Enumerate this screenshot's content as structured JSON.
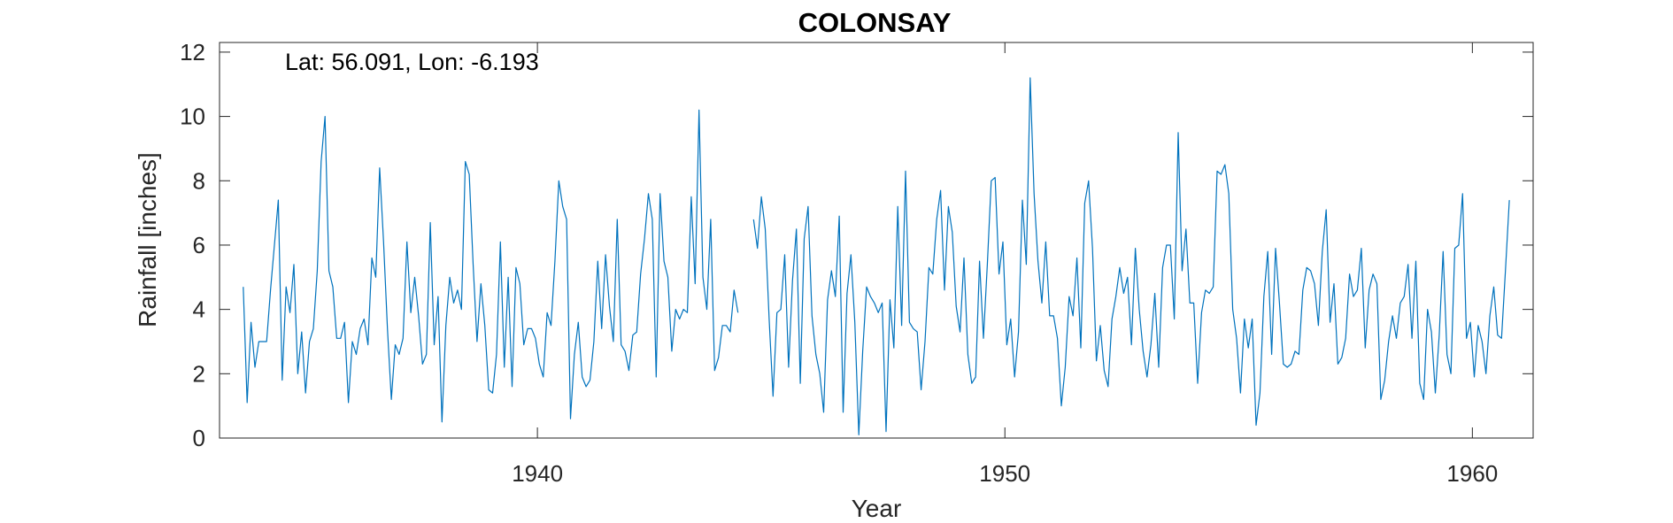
{
  "chart_data": {
    "type": "line",
    "title": "COLONSAY",
    "xlabel": "Year",
    "ylabel": "Rainfall [inches]",
    "annotation": "Lat: 56.091, Lon: -6.193",
    "xlim": [
      1933.2,
      1961.3
    ],
    "ylim": [
      0,
      12.3
    ],
    "xticks": [
      1940,
      1950,
      1960
    ],
    "yticks": [
      0,
      2,
      4,
      6,
      8,
      10,
      12
    ],
    "grid": false,
    "box": true,
    "colors": {
      "line": "#0072BD",
      "axis": "#262626"
    },
    "series": [
      {
        "start": 1933.708,
        "step": 0.08333,
        "values": [
          4.7,
          1.1,
          3.6,
          2.2,
          3.0,
          3.0,
          3.0,
          4.6,
          6.0,
          7.4,
          1.8,
          4.7,
          3.9,
          5.4,
          2.0,
          3.3,
          1.4,
          3.0,
          3.4,
          5.2,
          8.6,
          10.0,
          5.2,
          4.7,
          3.1,
          3.1,
          3.6,
          1.1,
          3.0,
          2.6,
          3.4,
          3.7,
          2.9,
          5.6,
          5.0,
          8.4,
          6.1,
          3.4,
          1.2,
          2.9,
          2.6,
          3.1,
          6.1,
          3.9,
          5.0,
          3.8,
          2.3,
          2.6,
          6.7,
          2.9,
          4.4,
          0.5,
          3.5,
          5.0,
          4.2,
          4.6,
          4.0,
          8.6,
          8.2,
          5.4,
          3.0,
          4.8,
          3.5,
          1.5,
          1.4,
          2.6,
          6.1,
          2.2,
          5.0,
          1.6,
          5.3,
          4.8,
          2.9,
          3.4,
          3.4,
          3.1,
          2.3,
          1.9,
          3.9,
          3.5,
          5.5,
          8.0,
          7.2,
          6.8,
          0.6,
          2.6,
          3.6,
          1.9,
          1.6,
          1.8,
          3.0,
          5.5,
          3.4,
          5.7,
          4.1,
          3.0,
          6.8,
          2.9,
          2.7,
          2.1,
          3.2,
          3.3,
          5.1,
          6.2,
          7.6,
          6.8,
          1.9,
          7.6,
          5.5,
          5.0,
          2.7,
          4.0,
          3.7,
          4.0,
          3.9,
          7.5,
          4.8,
          10.2,
          5.0,
          4.0,
          6.8,
          2.1,
          2.5,
          3.5,
          3.5,
          3.3,
          4.6,
          3.9,
          null,
          null,
          null,
          6.8,
          5.9,
          7.5,
          6.5,
          3.7,
          1.3,
          3.9,
          4.0,
          5.7,
          2.2,
          4.9,
          6.5,
          1.7,
          6.2,
          7.2,
          3.8,
          2.6,
          2.0,
          0.8,
          4.3,
          5.2,
          4.4,
          6.9,
          0.8,
          4.5,
          5.7,
          3.6,
          0.1,
          2.7,
          4.7,
          4.4,
          4.2,
          3.9,
          4.2,
          0.2,
          4.3,
          2.8,
          7.2,
          3.5,
          8.3,
          3.6,
          3.4,
          3.3,
          1.5,
          3.0,
          5.3,
          5.1,
          6.8,
          7.7,
          4.6,
          7.2,
          6.4,
          4.1,
          3.3,
          5.6,
          2.6,
          1.7,
          1.9,
          5.5,
          3.1,
          5.4,
          8.0,
          8.1,
          5.1,
          6.1,
          2.9,
          3.7,
          1.9,
          3.3,
          7.4,
          5.4,
          11.2,
          7.6,
          5.5,
          4.2,
          6.1,
          3.8,
          3.8,
          3.1,
          1.0,
          2.2,
          4.4,
          3.8,
          5.6,
          2.8,
          7.3,
          8.0,
          5.9,
          2.4,
          3.5,
          2.1,
          1.6,
          3.7,
          4.4,
          5.3,
          4.5,
          5.0,
          2.9,
          5.9,
          4.0,
          2.7,
          1.9,
          2.9,
          4.5,
          2.2,
          5.3,
          6.0,
          6.0,
          3.7,
          9.5,
          5.2,
          6.5,
          4.2,
          4.2,
          1.7,
          3.9,
          4.6,
          4.5,
          4.7,
          8.3,
          8.2,
          8.5,
          7.6,
          4.0,
          3.1,
          1.4,
          3.7,
          2.8,
          3.7,
          0.4,
          1.4,
          4.4,
          5.8,
          2.6,
          5.9,
          4.2,
          2.3,
          2.2,
          2.3,
          2.7,
          2.6,
          4.6,
          5.3,
          5.2,
          4.8,
          3.5,
          5.8,
          7.1,
          3.6,
          4.8,
          2.3,
          2.5,
          3.1,
          5.1,
          4.4,
          4.6,
          5.9,
          2.8,
          4.6,
          5.1,
          4.8,
          1.2,
          1.8,
          3.0,
          3.8,
          3.1,
          4.2,
          4.4,
          5.4,
          3.1,
          5.5,
          1.7,
          1.2,
          4.0,
          3.3,
          1.4,
          3.2,
          5.8,
          2.6,
          2.0,
          5.9,
          6.0,
          7.6,
          3.1,
          3.6,
          1.9,
          3.5,
          3.0,
          2.0,
          3.8,
          4.7,
          3.2,
          3.1,
          5.2,
          7.4
        ]
      }
    ]
  }
}
